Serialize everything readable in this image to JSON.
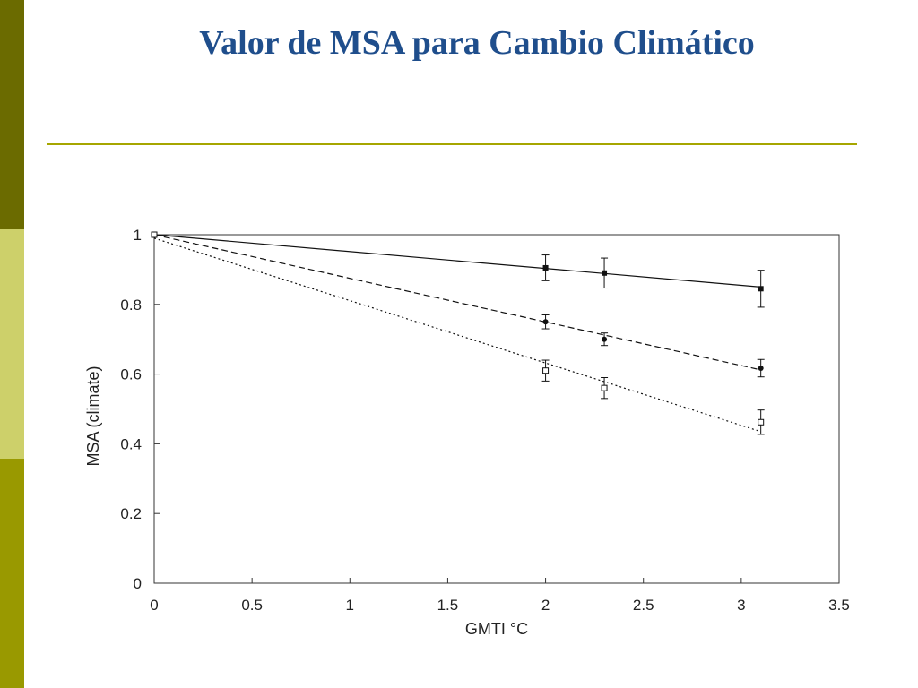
{
  "slide": {
    "title": "Valor de MSA para Cambio Climático"
  },
  "colors": {
    "side_bar_top": "#6b6b00",
    "side_bar_middle": "#cdd06a",
    "side_bar_bottom": "#999900",
    "title": "#1f4e8c",
    "rule": "#a6a600",
    "axis": "#333333",
    "series": "#111111"
  },
  "chart_data": {
    "type": "line",
    "title": "",
    "xlabel": "GMTI °C",
    "ylabel": "MSA (climate)",
    "xlim": [
      0,
      3.5
    ],
    "ylim": [
      0,
      1
    ],
    "xticks": [
      "0",
      "0.5",
      "1",
      "1.5",
      "2",
      "2.5",
      "3",
      "3.5"
    ],
    "yticks": [
      "0",
      "0.2",
      "0.4",
      "0.6",
      "0.8",
      "1"
    ],
    "grid": false,
    "legend": "none",
    "series": [
      {
        "style": "solid",
        "marker": "filled-square",
        "fit": [
          [
            0,
            1.0
          ],
          [
            3.1,
            0.85
          ]
        ],
        "points": [
          {
            "x": 0,
            "y": 1.0,
            "err": 0
          },
          {
            "x": 2.0,
            "y": 0.905,
            "err": 0.037
          },
          {
            "x": 2.3,
            "y": 0.89,
            "err": 0.043
          },
          {
            "x": 3.1,
            "y": 0.845,
            "err": 0.053
          }
        ]
      },
      {
        "style": "dashed",
        "marker": "filled-circle",
        "fit": [
          [
            0,
            1.0
          ],
          [
            3.1,
            0.612
          ]
        ],
        "points": [
          {
            "x": 0,
            "y": 1.0,
            "err": 0
          },
          {
            "x": 2.0,
            "y": 0.75,
            "err": 0.02
          },
          {
            "x": 2.3,
            "y": 0.7,
            "err": 0.018
          },
          {
            "x": 3.1,
            "y": 0.617,
            "err": 0.025
          }
        ]
      },
      {
        "style": "dotted",
        "marker": "open-square",
        "fit": [
          [
            0,
            0.99
          ],
          [
            3.1,
            0.435
          ]
        ],
        "points": [
          {
            "x": 0,
            "y": 1.0,
            "err": 0
          },
          {
            "x": 2.0,
            "y": 0.61,
            "err": 0.03
          },
          {
            "x": 2.3,
            "y": 0.56,
            "err": 0.03
          },
          {
            "x": 3.1,
            "y": 0.462,
            "err": 0.035
          }
        ]
      }
    ]
  }
}
